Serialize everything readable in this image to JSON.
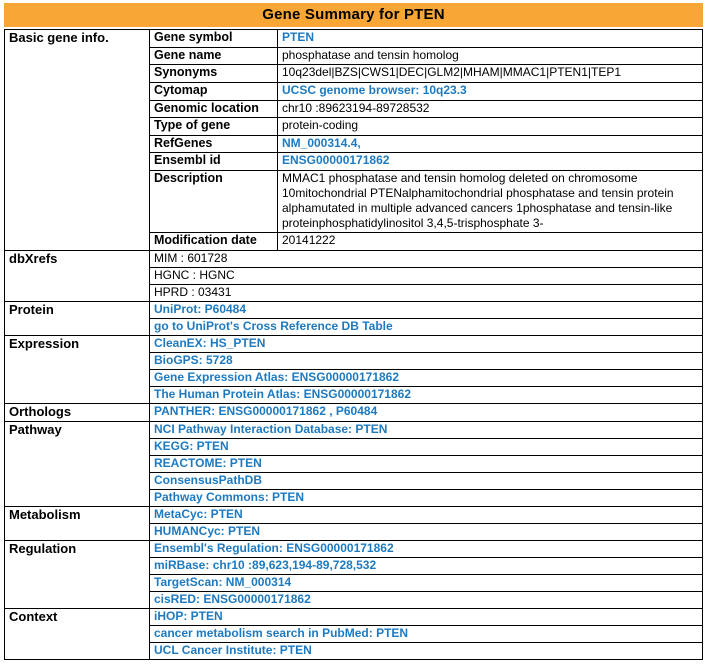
{
  "title": "Gene Summary for PTEN",
  "colors": {
    "header_bg": "#F8A635",
    "link": "#1E7AC0",
    "border": "#000000",
    "text": "#000000"
  },
  "table": {
    "sections": [
      {
        "name": "Basic gene info.",
        "rows": [
          {
            "label": "Gene symbol",
            "value": "PTEN"
          },
          {
            "label": "Gene name",
            "value": "phosphatase and tensin homolog"
          },
          {
            "label": "Synonyms",
            "value": "10q23del|BZS|CWS1|DEC|GLM2|MHAM|MMAC1|PTEN1|TEP1"
          },
          {
            "label": "Cytomap",
            "value": "UCSC genome browser: 10q23.3"
          },
          {
            "label": "Genomic location",
            "value": "chr10 :89623194-89728532"
          },
          {
            "label": "Type of gene",
            "value": "protein-coding"
          },
          {
            "label": "RefGenes",
            "value": "NM_000314.4,"
          },
          {
            "label": "Ensembl id",
            "value": "ENSG00000171862"
          },
          {
            "label": "Description",
            "value": "MMAC1 phosphatase and tensin homolog deleted on chromosome 10mitochondrial PTENalphamitochondrial phosphatase and tensin protein alphamutated in multiple advanced cancers 1phosphatase and tensin-like proteinphosphatidylinositol 3,4,5-trisphosphate 3-"
          },
          {
            "label": "Modification date",
            "value": "20141222"
          }
        ]
      },
      {
        "name": "dbXrefs",
        "rows": [
          {
            "value": "MIM : 601728"
          },
          {
            "value": "HGNC : HGNC"
          },
          {
            "value": "HPRD : 03431"
          }
        ]
      },
      {
        "name": "Protein",
        "rows": [
          {
            "value": "UniProt: P60484"
          },
          {
            "value": "go to UniProt's Cross Reference DB Table"
          }
        ]
      },
      {
        "name": "Expression",
        "rows": [
          {
            "value": "CleanEX: HS_PTEN"
          },
          {
            "value": "BioGPS: 5728"
          },
          {
            "value": "Gene Expression Atlas: ENSG00000171862"
          },
          {
            "value": "The Human Protein Atlas: ENSG00000171862"
          }
        ]
      },
      {
        "name": "Orthologs",
        "rows": [
          {
            "value": "PANTHER: ENSG00000171862 , P60484"
          }
        ]
      },
      {
        "name": "Pathway",
        "rows": [
          {
            "value": "NCI Pathway Interaction Database: PTEN"
          },
          {
            "value": "KEGG: PTEN"
          },
          {
            "value": "REACTOME: PTEN"
          },
          {
            "value": "ConsensusPathDB"
          },
          {
            "value": "Pathway Commons: PTEN"
          }
        ]
      },
      {
        "name": "Metabolism",
        "rows": [
          {
            "value": "MetaCyc: PTEN"
          },
          {
            "value": "HUMANCyc: PTEN"
          }
        ]
      },
      {
        "name": "Regulation",
        "rows": [
          {
            "value": "Ensembl's Regulation: ENSG00000171862"
          },
          {
            "value": "miRBase: chr10 :89,623,194-89,728,532"
          },
          {
            "value": "TargetScan: NM_000314"
          },
          {
            "value": "cisRED: ENSG00000171862"
          }
        ]
      },
      {
        "name": "Context",
        "rows": [
          {
            "value": "iHOP: PTEN"
          },
          {
            "value": "cancer metabolism search in PubMed: PTEN"
          },
          {
            "value": "UCL Cancer Institute: PTEN"
          }
        ]
      }
    ]
  }
}
